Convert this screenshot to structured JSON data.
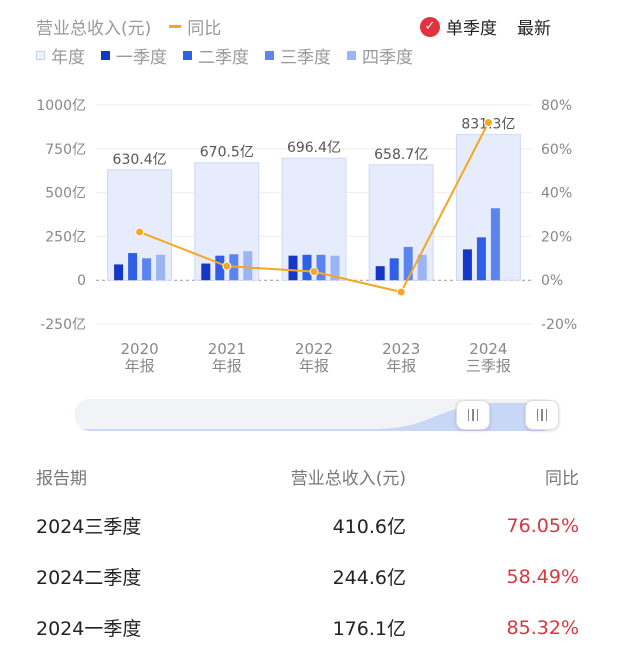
{
  "header": {
    "series_revenue_label": "营业总收入(元)",
    "series_yoy_label": "同比",
    "single_quarter_label": "单季度",
    "latest_label": "最新"
  },
  "legend": {
    "year": "年度",
    "q1": "一季度",
    "q2": "二季度",
    "q3": "三季度",
    "q4": "四季度"
  },
  "colors": {
    "year_bar": "#e6ecfb",
    "q1": "#1537c8",
    "q2": "#2f5fe6",
    "q3": "#5b84ee",
    "q4": "#9ab4f4",
    "yoy_line": "#f5a623",
    "positive_yoy": "#d9373f"
  },
  "chart_data": {
    "type": "bar",
    "categories": [
      [
        "2020",
        "年报"
      ],
      [
        "2021",
        "年报"
      ],
      [
        "2022",
        "年报"
      ],
      [
        "2023",
        "年报"
      ],
      [
        "2024",
        "三季报"
      ]
    ],
    "annual_values": [
      630.4,
      670.5,
      696.4,
      658.7,
      831.3
    ],
    "annual_labels": [
      "630.4亿",
      "670.5亿",
      "696.4亿",
      "658.7亿",
      "831.3亿"
    ],
    "series": [
      {
        "name": "一季度",
        "values": [
          90,
          95,
          140,
          80,
          176.1
        ]
      },
      {
        "name": "二季度",
        "values": [
          155,
          140,
          145,
          125,
          244.6
        ]
      },
      {
        "name": "三季度",
        "values": [
          125,
          148,
          145,
          190,
          410.6
        ]
      },
      {
        "name": "四季度",
        "values": [
          145,
          165,
          140,
          145,
          null
        ]
      }
    ],
    "yoy_percent": [
      22,
      6.4,
      3.9,
      -5.4,
      72.0
    ],
    "left_axis": {
      "min": -250,
      "max": 1000,
      "ticks": [
        "1000亿",
        "750亿",
        "500亿",
        "250亿",
        "0",
        "-250亿"
      ],
      "tick_values": [
        1000,
        750,
        500,
        250,
        0,
        -250
      ]
    },
    "right_axis": {
      "min": -20,
      "max": 80,
      "ticks": [
        "80%",
        "60%",
        "40%",
        "20%",
        "0%",
        "-20%"
      ],
      "tick_values": [
        80,
        60,
        40,
        20,
        0,
        -20
      ]
    }
  },
  "table": {
    "headers": [
      "报告期",
      "营业总收入(元)",
      "同比"
    ],
    "rows": [
      {
        "period": "2024三季度",
        "revenue": "410.6亿",
        "yoy": "76.05%"
      },
      {
        "period": "2024二季度",
        "revenue": "244.6亿",
        "yoy": "58.49%"
      },
      {
        "period": "2024一季度",
        "revenue": "176.1亿",
        "yoy": "85.32%"
      }
    ]
  }
}
